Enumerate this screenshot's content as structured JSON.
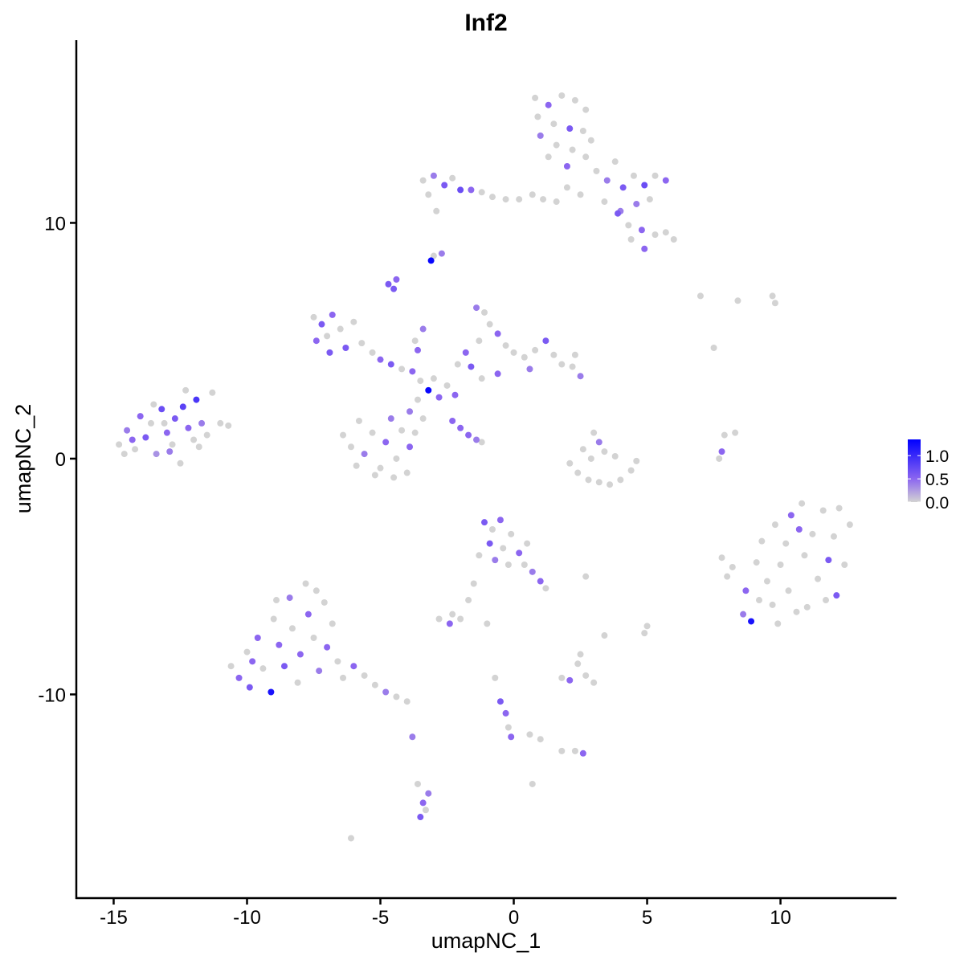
{
  "chart_data": {
    "type": "scatter",
    "title": "Inf2",
    "xlabel": "umapNC_1",
    "ylabel": "umapNC_2",
    "xlim": [
      -16.4,
      14.35
    ],
    "ylim": [
      -18.64,
      17.75
    ],
    "xticks": [
      -15,
      -10,
      -5,
      0,
      5,
      10
    ],
    "xtick_labels": [
      "-15",
      "-10",
      "-5",
      "0",
      "5",
      "10"
    ],
    "yticks": [
      -10,
      0,
      10
    ],
    "ytick_labels": [
      "-10",
      "0",
      "10"
    ],
    "grid": false,
    "legend": {
      "placement": "right",
      "type": "colorbar",
      "range": [
        0,
        1.35
      ],
      "ticks": [
        0.0,
        0.5,
        1.0
      ],
      "tick_labels": [
        "0.0",
        "0.5",
        "1.0"
      ],
      "colors": [
        "#D3D3D3",
        "#8C66F0",
        "#0000FF"
      ]
    },
    "point_fields": [
      "x",
      "y",
      "expression"
    ],
    "points": [
      [
        -14.8,
        0.6,
        0
      ],
      [
        -14.5,
        1.2,
        0.4
      ],
      [
        -14.2,
        0.4,
        0
      ],
      [
        -14,
        1.8,
        0.5
      ],
      [
        -13.8,
        0.9,
        0.6
      ],
      [
        -13.6,
        1.5,
        0
      ],
      [
        -13.4,
        0.2,
        0.3
      ],
      [
        -13.2,
        2.1,
        0.7
      ],
      [
        -13,
        1.1,
        0.5
      ],
      [
        -12.8,
        0.6,
        0
      ],
      [
        -12.7,
        1.7,
        0.6
      ],
      [
        -12.5,
        -0.2,
        0
      ],
      [
        -12.4,
        2.2,
        0.8
      ],
      [
        -12.2,
        1.3,
        0.5
      ],
      [
        -12,
        0.8,
        0
      ],
      [
        -11.9,
        2.5,
        0.9
      ],
      [
        -11.7,
        1.5,
        0.4
      ],
      [
        -11.5,
        1.0,
        0
      ],
      [
        -11.3,
        2.8,
        0
      ],
      [
        -11,
        1.5,
        0
      ],
      [
        -10.7,
        1.4,
        0
      ],
      [
        -13.5,
        2.3,
        0
      ],
      [
        -14.3,
        0.8,
        0.5
      ],
      [
        -12.9,
        0.3,
        0.4
      ],
      [
        -11.8,
        0.5,
        0
      ],
      [
        -12.3,
        2.9,
        0
      ],
      [
        -13.1,
        1.5,
        0
      ],
      [
        -14.6,
        0.2,
        0
      ],
      [
        0.8,
        15.3,
        0
      ],
      [
        1.3,
        15.0,
        0.5
      ],
      [
        1.8,
        15.4,
        0
      ],
      [
        2.3,
        15.2,
        0
      ],
      [
        2.7,
        14.8,
        0
      ],
      [
        0.9,
        14.5,
        0
      ],
      [
        1.5,
        14.2,
        0
      ],
      [
        2.1,
        14.0,
        0.6
      ],
      [
        2.6,
        13.9,
        0
      ],
      [
        1.0,
        13.7,
        0.4
      ],
      [
        1.6,
        13.3,
        0
      ],
      [
        2.2,
        13.1,
        0
      ],
      [
        2.9,
        13.5,
        0
      ],
      [
        1.3,
        12.8,
        0
      ],
      [
        2.0,
        12.4,
        0.5
      ],
      [
        2.7,
        12.8,
        0
      ],
      [
        3.1,
        12.2,
        0
      ],
      [
        3.5,
        11.8,
        0.4
      ],
      [
        3.8,
        12.6,
        0
      ],
      [
        4.1,
        11.5,
        0.6
      ],
      [
        4.5,
        12.0,
        0
      ],
      [
        4.9,
        11.6,
        0.7
      ],
      [
        5.3,
        12.0,
        0
      ],
      [
        5.7,
        11.8,
        0.5
      ],
      [
        5.1,
        11.0,
        0
      ],
      [
        4.6,
        10.8,
        0.4
      ],
      [
        3.4,
        10.9,
        0
      ],
      [
        3.9,
        10.4,
        0.6
      ],
      [
        4.3,
        9.9,
        0
      ],
      [
        4.8,
        9.7,
        0.5
      ],
      [
        5.3,
        9.5,
        0
      ],
      [
        5.7,
        9.6,
        0
      ],
      [
        6.0,
        9.3,
        0
      ],
      [
        4.4,
        9.3,
        0
      ],
      [
        4.9,
        8.9,
        0.5
      ],
      [
        4.0,
        10.5,
        0.4
      ],
      [
        -3.4,
        11.8,
        0
      ],
      [
        -3.0,
        12.0,
        0.4
      ],
      [
        -2.6,
        11.6,
        0.6
      ],
      [
        -2.3,
        11.9,
        0
      ],
      [
        -2.0,
        11.4,
        0.7
      ],
      [
        -1.6,
        11.4,
        0.5
      ],
      [
        -1.2,
        11.3,
        0
      ],
      [
        -0.8,
        11.1,
        0
      ],
      [
        -0.3,
        11.0,
        0
      ],
      [
        0.2,
        11.0,
        0
      ],
      [
        0.7,
        11.2,
        0
      ],
      [
        1.1,
        11.0,
        0
      ],
      [
        1.6,
        10.9,
        0
      ],
      [
        2.0,
        11.5,
        0
      ],
      [
        -3.2,
        11.2,
        0
      ],
      [
        -2.9,
        10.5,
        0
      ],
      [
        2.5,
        11.2,
        0
      ],
      [
        -3.0,
        8.6,
        0
      ],
      [
        -2.7,
        8.7,
        0.4
      ],
      [
        -3.1,
        8.4,
        1.3
      ],
      [
        -4.7,
        7.4,
        0.6
      ],
      [
        -4.5,
        7.2,
        0.6
      ],
      [
        -4.4,
        7.6,
        0.5
      ],
      [
        -7.5,
        6.0,
        0
      ],
      [
        -7.2,
        5.7,
        0.6
      ],
      [
        -7.0,
        5.2,
        0
      ],
      [
        -6.8,
        6.1,
        0.5
      ],
      [
        -6.5,
        5.5,
        0
      ],
      [
        -6.3,
        4.7,
        0.6
      ],
      [
        -7.4,
        5.0,
        0.5
      ],
      [
        -6.0,
        5.8,
        0
      ],
      [
        -5.7,
        4.9,
        0
      ],
      [
        -5.3,
        4.5,
        0
      ],
      [
        -5.0,
        4.2,
        0.5
      ],
      [
        -4.6,
        4.0,
        0.6
      ],
      [
        -4.2,
        3.8,
        0
      ],
      [
        -3.8,
        3.7,
        0.5
      ],
      [
        -6.9,
        4.5,
        0.6
      ],
      [
        -3.5,
        3.3,
        0
      ],
      [
        -3.2,
        2.9,
        1.3
      ],
      [
        -3.0,
        3.4,
        0
      ],
      [
        -2.8,
        2.6,
        0.5
      ],
      [
        -3.6,
        2.5,
        0
      ],
      [
        -2.5,
        3.1,
        0
      ],
      [
        -2.2,
        2.7,
        0.5
      ],
      [
        -3.9,
        2.0,
        0.4
      ],
      [
        -3.4,
        1.7,
        0
      ],
      [
        -3.6,
        4.6,
        0.5
      ],
      [
        -3.4,
        5.5,
        0.4
      ],
      [
        -3.7,
        5.0,
        0
      ],
      [
        -1.4,
        6.4,
        0.4
      ],
      [
        -1.1,
        6.2,
        0
      ],
      [
        -0.9,
        5.7,
        0
      ],
      [
        -0.6,
        5.3,
        0.5
      ],
      [
        -1.3,
        5.0,
        0
      ],
      [
        -0.3,
        4.8,
        0
      ],
      [
        -1.8,
        4.5,
        0.5
      ],
      [
        -2.1,
        4.0,
        0
      ],
      [
        0,
        4.5,
        0
      ],
      [
        0.4,
        4.3,
        0
      ],
      [
        0.8,
        4.6,
        0
      ],
      [
        1.2,
        5.0,
        0.6
      ],
      [
        1.5,
        4.4,
        0
      ],
      [
        1.8,
        4.0,
        0
      ],
      [
        2.2,
        3.9,
        0
      ],
      [
        2.5,
        3.5,
        0.4
      ],
      [
        2.3,
        4.4,
        0
      ],
      [
        0.6,
        3.8,
        0.4
      ],
      [
        -0.6,
        3.6,
        0.5
      ],
      [
        -1.2,
        3.4,
        0
      ],
      [
        -1.6,
        3.9,
        0.6
      ],
      [
        -6.4,
        1.0,
        0
      ],
      [
        -6.1,
        0.5,
        0
      ],
      [
        -5.8,
        1.6,
        0
      ],
      [
        -5.6,
        0.2,
        0.4
      ],
      [
        -5.3,
        1.1,
        0
      ],
      [
        -5.0,
        -0.4,
        0
      ],
      [
        -4.8,
        0.7,
        0.5
      ],
      [
        -4.6,
        1.7,
        0.4
      ],
      [
        -4.4,
        0.0,
        0
      ],
      [
        -4.2,
        1.2,
        0
      ],
      [
        -4.0,
        -0.6,
        0
      ],
      [
        -3.9,
        0.5,
        0.5
      ],
      [
        -3.7,
        1.1,
        0
      ],
      [
        -5.9,
        -0.3,
        0
      ],
      [
        -5.2,
        -0.7,
        0
      ],
      [
        -4.5,
        -0.8,
        0
      ],
      [
        -2.3,
        1.6,
        0.5
      ],
      [
        -2.0,
        1.3,
        0.5
      ],
      [
        -1.7,
        1.0,
        0.5
      ],
      [
        -1.4,
        0.8,
        0.4
      ],
      [
        -1.2,
        0.7,
        0
      ],
      [
        2.1,
        -0.2,
        0
      ],
      [
        2.4,
        -0.6,
        0
      ],
      [
        2.8,
        -0.9,
        0
      ],
      [
        3.2,
        -1.0,
        0
      ],
      [
        3.6,
        -1.1,
        0
      ],
      [
        4.0,
        -0.9,
        0
      ],
      [
        4.4,
        -0.5,
        0
      ],
      [
        4.6,
        -0.1,
        0
      ],
      [
        3.0,
        1.1,
        0
      ],
      [
        3.2,
        0.7,
        0.4
      ],
      [
        3.4,
        0.3,
        0
      ],
      [
        2.9,
        0.0,
        0
      ],
      [
        3.8,
        0.1,
        0
      ],
      [
        2.6,
        0.4,
        0
      ],
      [
        7.8,
        -4.2,
        0
      ],
      [
        8.0,
        -5.0,
        0
      ],
      [
        8.2,
        -4.6,
        0
      ],
      [
        8.7,
        -5.6,
        0.5
      ],
      [
        8.9,
        -6.9,
        1.2
      ],
      [
        8.6,
        -6.6,
        0.4
      ],
      [
        9.1,
        -4.4,
        0
      ],
      [
        9.3,
        -3.5,
        0
      ],
      [
        9.5,
        -5.2,
        0
      ],
      [
        9.7,
        -6.2,
        0
      ],
      [
        9.8,
        -2.8,
        0
      ],
      [
        10.0,
        -4.5,
        0
      ],
      [
        10.2,
        -3.6,
        0
      ],
      [
        10.4,
        -2.4,
        0.5
      ],
      [
        10.3,
        -5.6,
        0
      ],
      [
        10.6,
        -6.5,
        0
      ],
      [
        10.8,
        -1.9,
        0
      ],
      [
        10.9,
        -4.1,
        0
      ],
      [
        11.2,
        -3.2,
        0
      ],
      [
        11.4,
        -5.1,
        0
      ],
      [
        11.6,
        -2.2,
        0
      ],
      [
        11.8,
        -4.3,
        0.6
      ],
      [
        12.0,
        -3.3,
        0
      ],
      [
        12.1,
        -5.8,
        0.6
      ],
      [
        12.4,
        -4.5,
        0
      ],
      [
        12.6,
        -2.8,
        0
      ],
      [
        12.2,
        -2.1,
        0
      ],
      [
        11.0,
        -6.3,
        0
      ],
      [
        9.9,
        -7.0,
        0
      ],
      [
        10.7,
        -3.0,
        0.5
      ],
      [
        9.2,
        -6.0,
        0
      ],
      [
        11.7,
        -6.0,
        0
      ],
      [
        -10.6,
        -8.8,
        0
      ],
      [
        -10.3,
        -9.3,
        0.5
      ],
      [
        -10.0,
        -8.2,
        0
      ],
      [
        -9.9,
        -9.7,
        0.6
      ],
      [
        -9.6,
        -7.6,
        0.5
      ],
      [
        -9.4,
        -8.9,
        0
      ],
      [
        -9.1,
        -9.9,
        1.2
      ],
      [
        -9.0,
        -6.8,
        0
      ],
      [
        -8.8,
        -7.9,
        0.5
      ],
      [
        -8.6,
        -8.8,
        0.6
      ],
      [
        -8.4,
        -5.9,
        0.4
      ],
      [
        -8.3,
        -7.2,
        0
      ],
      [
        -8.1,
        -9.5,
        0
      ],
      [
        -8.0,
        -8.3,
        0.5
      ],
      [
        -7.8,
        -5.3,
        0
      ],
      [
        -7.7,
        -6.6,
        0.5
      ],
      [
        -7.5,
        -7.6,
        0
      ],
      [
        -7.3,
        -9.0,
        0.4
      ],
      [
        -7.1,
        -6.1,
        0
      ],
      [
        -7.0,
        -8.0,
        0.5
      ],
      [
        -6.8,
        -7.0,
        0
      ],
      [
        -6.6,
        -8.6,
        0
      ],
      [
        -6.4,
        -9.3,
        0
      ],
      [
        -6.0,
        -8.8,
        0.5
      ],
      [
        -5.6,
        -9.2,
        0
      ],
      [
        -5.2,
        -9.6,
        0
      ],
      [
        -4.8,
        -9.9,
        0.4
      ],
      [
        -4.4,
        -10.1,
        0
      ],
      [
        -4.0,
        -10.3,
        0
      ],
      [
        -8.9,
        -6.0,
        0
      ],
      [
        -9.8,
        -8.6,
        0.5
      ],
      [
        -7.4,
        -5.6,
        0
      ],
      [
        -1.1,
        -2.7,
        0.6
      ],
      [
        -0.8,
        -3.0,
        0
      ],
      [
        -0.5,
        -2.6,
        0.5
      ],
      [
        -0.9,
        -3.6,
        0.6
      ],
      [
        -0.4,
        -3.8,
        0
      ],
      [
        -0.1,
        -3.2,
        0
      ],
      [
        0.2,
        -4.0,
        0.5
      ],
      [
        0.5,
        -3.6,
        0
      ],
      [
        -0.2,
        -4.5,
        0
      ],
      [
        0.7,
        -4.8,
        0.4
      ],
      [
        1.0,
        -5.2,
        0.5
      ],
      [
        1.2,
        -5.5,
        0
      ],
      [
        -1.3,
        -4.1,
        0
      ],
      [
        -1.5,
        -5.3,
        0
      ],
      [
        -1.7,
        -6.0,
        0
      ],
      [
        -0.7,
        -4.3,
        0.4
      ],
      [
        0.4,
        -4.5,
        0
      ],
      [
        -2.8,
        -6.8,
        0
      ],
      [
        -2.4,
        -7.0,
        0.5
      ],
      [
        -2.0,
        -6.8,
        0
      ],
      [
        -2.3,
        -6.6,
        0
      ],
      [
        -1.0,
        -7.0,
        0
      ],
      [
        2.7,
        -5.0,
        0
      ],
      [
        3.4,
        -7.5,
        0
      ],
      [
        5.0,
        -7.1,
        0
      ],
      [
        4.9,
        -7.4,
        0
      ],
      [
        1.8,
        -9.3,
        0
      ],
      [
        2.1,
        -9.4,
        0.5
      ],
      [
        2.4,
        -8.7,
        0
      ],
      [
        2.7,
        -9.2,
        0
      ],
      [
        3.0,
        -9.5,
        0
      ],
      [
        2.5,
        -8.3,
        0
      ],
      [
        -3.6,
        -13.8,
        0
      ],
      [
        -3.4,
        -14.6,
        0.5
      ],
      [
        -3.5,
        -15.2,
        0.6
      ],
      [
        -3.3,
        -14.9,
        0
      ],
      [
        -3.2,
        -14.2,
        0.4
      ],
      [
        -3.8,
        -11.8,
        0.4
      ],
      [
        -0.7,
        -9.3,
        0
      ],
      [
        -0.5,
        -10.3,
        0.6
      ],
      [
        -0.3,
        -10.8,
        0.5
      ],
      [
        -0.2,
        -11.4,
        0
      ],
      [
        -0.1,
        -11.8,
        0.5
      ],
      [
        0.6,
        -11.7,
        0
      ],
      [
        1.0,
        -11.9,
        0
      ],
      [
        1.8,
        -12.4,
        0
      ],
      [
        2.3,
        -12.4,
        0
      ],
      [
        2.6,
        -12.5,
        0.5
      ],
      [
        0.7,
        -13.8,
        0
      ],
      [
        7.9,
        1.0,
        0
      ],
      [
        7.8,
        0.3,
        0.5
      ],
      [
        7.7,
        0,
        0
      ],
      [
        8.3,
        1.1,
        0
      ],
      [
        -6.1,
        -16.1,
        0
      ],
      [
        7.0,
        6.9,
        0
      ],
      [
        7.5,
        4.7,
        0
      ],
      [
        8.4,
        6.7,
        0
      ],
      [
        9.7,
        6.9,
        0
      ],
      [
        9.8,
        6.6,
        0
      ]
    ]
  }
}
